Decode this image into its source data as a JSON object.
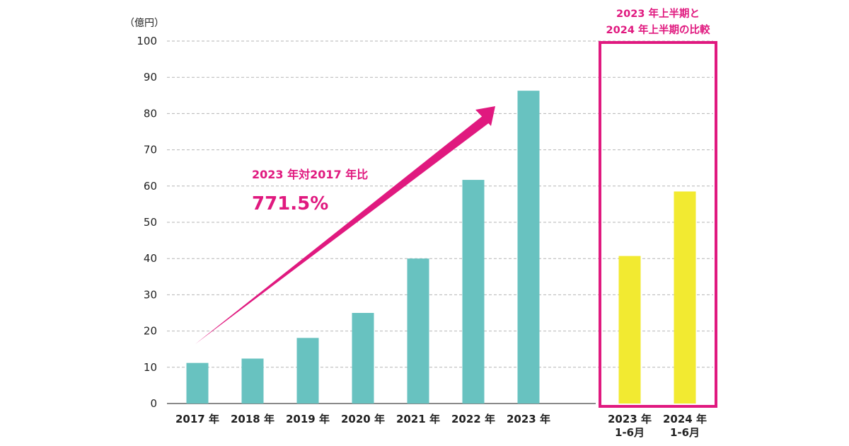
{
  "chart_data": {
    "type": "bar",
    "unit_label": "（億円）",
    "ylim": [
      0,
      100
    ],
    "yticks": [
      0,
      10,
      20,
      30,
      40,
      50,
      60,
      70,
      80,
      90,
      100
    ],
    "grid": true,
    "categories": [
      "2017 年",
      "2018 年",
      "2019 年",
      "2020 年",
      "2021 年",
      "2022 年",
      "2023 年"
    ],
    "values": [
      11.2,
      12.4,
      18.1,
      25.0,
      40.0,
      61.7,
      86.3
    ],
    "bar_color": "#68c2c0",
    "compare": {
      "title_lines": [
        "2023 年上半期と",
        "2024 年上半期の比較"
      ],
      "categories": [
        {
          "line1": "2023 年",
          "line2": "1-6月"
        },
        {
          "line1": "2024 年",
          "line2": "1-6月"
        }
      ],
      "values": [
        40.7,
        58.5
      ],
      "bar_color": "#f2ea31",
      "frame_color": "#e0197f"
    },
    "annotation": {
      "line1": "2023 年対2017 年比",
      "line2": "771.5%",
      "color": "#e0197f"
    }
  }
}
